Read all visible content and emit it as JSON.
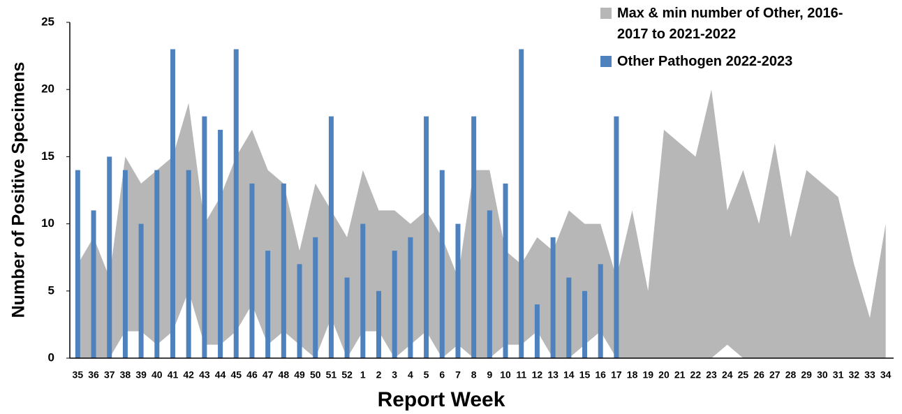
{
  "chart_data": {
    "type": "bar",
    "x_label": "Report Week",
    "y_label": "Number of Positive Specimens",
    "categories": [
      "35",
      "36",
      "37",
      "38",
      "39",
      "40",
      "41",
      "42",
      "43",
      "44",
      "45",
      "46",
      "47",
      "48",
      "49",
      "50",
      "51",
      "52",
      "1",
      "2",
      "3",
      "4",
      "5",
      "6",
      "7",
      "8",
      "9",
      "10",
      "11",
      "12",
      "13",
      "14",
      "15",
      "16",
      "17",
      "18",
      "19",
      "20",
      "21",
      "22",
      "23",
      "24",
      "25",
      "26",
      "27",
      "28",
      "29",
      "30",
      "31",
      "32",
      "33",
      "34"
    ],
    "series": [
      {
        "name": "Max & min number of Other, 2016-2017 to 2021-2022",
        "type": "range",
        "color": "#b7b7b7",
        "upper": [
          7,
          9,
          6,
          15,
          13,
          14,
          15,
          19,
          10,
          12,
          15,
          17,
          14,
          13,
          8,
          13,
          11,
          9,
          14,
          11,
          11,
          10,
          11,
          9,
          6,
          14,
          14,
          8,
          7,
          9,
          8,
          11,
          10,
          10,
          6,
          11,
          5,
          17,
          16,
          15,
          20,
          11,
          14,
          10,
          16,
          9,
          14,
          13,
          12,
          7,
          3,
          10
        ],
        "lower": [
          0,
          0,
          0,
          2,
          2,
          1,
          2,
          5,
          1,
          1,
          2,
          4,
          1,
          2,
          1,
          0,
          3,
          0,
          2,
          2,
          0,
          1,
          2,
          0,
          1,
          0,
          0,
          1,
          1,
          2,
          0,
          0,
          1,
          2,
          0,
          0,
          0,
          0,
          0,
          0,
          0,
          1,
          0,
          0,
          0,
          0,
          0,
          0,
          0,
          0,
          0,
          0
        ]
      },
      {
        "name": "Other Pathogen 2022-2023",
        "type": "bar",
        "color": "#4f81bd",
        "values": [
          14,
          11,
          15,
          14,
          10,
          14,
          23,
          14,
          18,
          17,
          23,
          13,
          8,
          13,
          7,
          9,
          18,
          6,
          10,
          5,
          8,
          9,
          18,
          14,
          10,
          18,
          11,
          13,
          23,
          4,
          9,
          6,
          5,
          7,
          18,
          null,
          null,
          null,
          null,
          null,
          null,
          null,
          null,
          null,
          null,
          null,
          null,
          null,
          null,
          null,
          null,
          null
        ]
      }
    ],
    "ylim": [
      0,
      25
    ],
    "yticks": [
      0,
      5,
      10,
      15,
      20,
      25
    ],
    "grid": false
  }
}
